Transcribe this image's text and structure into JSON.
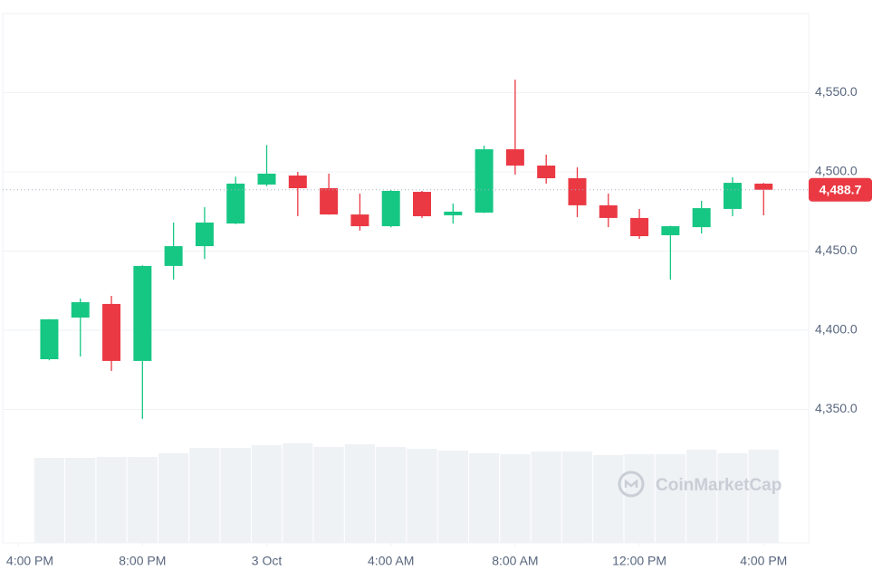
{
  "chart_data": {
    "type": "candlestick",
    "x": [
      1,
      2,
      3,
      4,
      5,
      6,
      7,
      8,
      9,
      10,
      11,
      12,
      13,
      14,
      15,
      16,
      17,
      18,
      19,
      20,
      21,
      22,
      23,
      24
    ],
    "open": [
      4381.7,
      4408,
      4416.6,
      4380.6,
      4440.6,
      4453.1,
      4467.4,
      4492,
      4497.7,
      4489.7,
      4473.1,
      4465.7,
      4487.4,
      4472.6,
      4474.3,
      4514.3,
      4504,
      4496,
      4478.9,
      4470.9,
      4460,
      4465.1,
      4476.6,
      4492.6
    ],
    "high": [
      4407,
      4420,
      4421.7,
      4441,
      4468,
      4477.7,
      4497,
      4517,
      4500,
      4498.9,
      4486.3,
      4488.6,
      4488,
      4480,
      4516.6,
      4558.3,
      4510.9,
      4502.9,
      4486.3,
      4476.6,
      4466,
      4481.7,
      4496.6,
      4493
    ],
    "low": [
      4381,
      4383.4,
      4374.3,
      4344,
      4432,
      4445,
      4467,
      4490.9,
      4472,
      4473,
      4462.9,
      4465,
      4470.9,
      4467.4,
      4474,
      4498.3,
      4492.6,
      4471.4,
      4465.1,
      4457.7,
      4432,
      4461.1,
      4472,
      4472.6
    ],
    "close": [
      4406.9,
      4417.7,
      4380.6,
      4440.6,
      4453.1,
      4468,
      4492.6,
      4498.9,
      4489.7,
      4473.1,
      4465.7,
      4488,
      4472,
      4474.9,
      4514.3,
      4504,
      4496,
      4478.9,
      4470.9,
      4459.4,
      4465.7,
      4477.1,
      4493.1,
      4488.7
    ],
    "volume": [
      94,
      94,
      95,
      95,
      99,
      105,
      105,
      108,
      110,
      106,
      109,
      106,
      104,
      102,
      99,
      98,
      101,
      101,
      97,
      98,
      98,
      103,
      99,
      103
    ],
    "up_color": "#16c784",
    "down_color": "#ea3943",
    "volume_color": "#eff2f5",
    "xlim": [
      -0.5,
      25.45
    ],
    "xticks": [
      {
        "value": 0,
        "label": "4:00 PM"
      },
      {
        "value": 4,
        "label": "8:00 PM"
      },
      {
        "value": 8,
        "label": "3 Oct"
      },
      {
        "value": 12,
        "label": "4:00 AM"
      },
      {
        "value": 16,
        "label": "8:00 AM"
      },
      {
        "value": 20,
        "label": "12:00 PM"
      },
      {
        "value": 24,
        "label": "4:00 PM"
      }
    ],
    "ylim": [
      4265.7,
      4600
    ],
    "yticks": [
      {
        "value": 4350,
        "label": "4,350.0"
      },
      {
        "value": 4400,
        "label": "4,400.0"
      },
      {
        "value": 4450,
        "label": "4,450.0"
      },
      {
        "value": 4500,
        "label": "4,500.0"
      },
      {
        "value": 4550,
        "label": "4,550.0"
      }
    ],
    "grid": true,
    "last_price": {
      "value": 4488.7,
      "label": "4,488.7"
    },
    "watermark": "CoinMarketCap"
  }
}
